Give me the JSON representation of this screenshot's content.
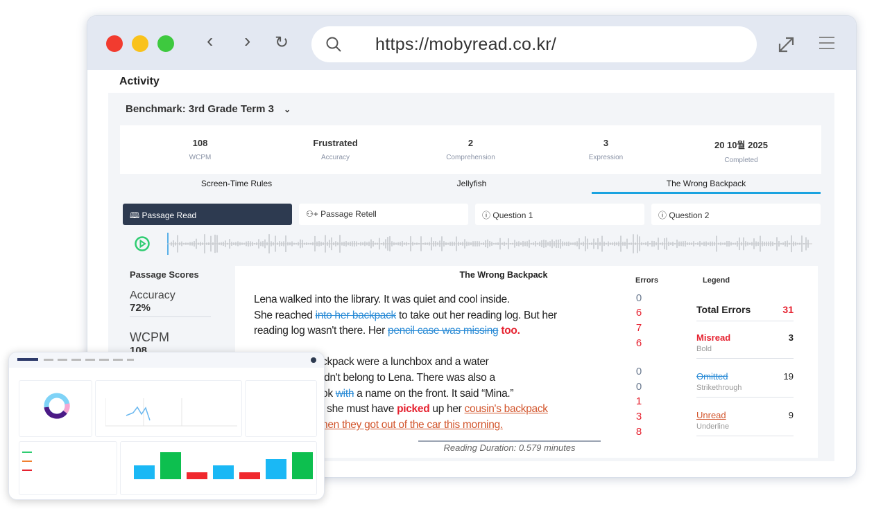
{
  "browser": {
    "url": "https://mobyread.co.kr/",
    "controls": {
      "close": "#f23b2f",
      "minimize": "#f9c21b",
      "maximize": "#3ec93f"
    }
  },
  "page": {
    "title": "Activity",
    "benchmark": "Benchmark: 3rd Grade Term 3"
  },
  "stats": [
    {
      "value": "108",
      "label": "WCPM"
    },
    {
      "value": "Frustrated",
      "label": "Accuracy"
    },
    {
      "value": "2",
      "label": "Comprehension"
    },
    {
      "value": "3",
      "label": "Expression"
    },
    {
      "value": "20 10월 2025",
      "label": "Completed"
    }
  ],
  "tabs": [
    {
      "label": "Screen-Time Rules"
    },
    {
      "label": "Jellyfish"
    },
    {
      "label": "The Wrong Backpack",
      "active": true
    }
  ],
  "subtabs": [
    {
      "label": "Passage Read",
      "icon": "book-icon",
      "active": true
    },
    {
      "label": "Passage Retell",
      "icon": "person-add-icon"
    },
    {
      "label": "Question 1",
      "icon": "question-icon"
    },
    {
      "label": "Question 2",
      "icon": "question-icon"
    }
  ],
  "scores": {
    "title": "Passage Scores",
    "items": [
      {
        "label": "Accuracy",
        "value": "72%"
      },
      {
        "label": "WCPM",
        "value": "108"
      }
    ]
  },
  "passage": {
    "title": "The Wrong Backpack",
    "para1": [
      [
        {
          "t": "Lena walked into the library. It was quiet and cool inside.",
          "s": ""
        }
      ],
      [
        {
          "t": "She reached ",
          "s": ""
        },
        {
          "t": "into her backpack",
          "s": "om"
        },
        {
          "t": " to take out her reading log. But her",
          "s": ""
        }
      ],
      [
        {
          "t": "reading log wasn't there. Her ",
          "s": ""
        },
        {
          "t": "pencil case was missing",
          "s": "om"
        },
        {
          "t": " too.",
          "s": "ms"
        }
      ]
    ],
    "para2": [
      [
        {
          "t": "ckpack were a lunchbox and a water",
          "s": ""
        }
      ],
      [
        {
          "t": "idn't belong to Lena. There was also a",
          "s": ""
        }
      ],
      [
        {
          "t": "ok ",
          "s": ""
        },
        {
          "t": "with",
          "s": "om"
        },
        {
          "t": " a name on the front. It said “Mina.”",
          "s": ""
        }
      ],
      [
        {
          "t": "l she must have ",
          "s": ""
        },
        {
          "t": "picked",
          "s": "ms"
        },
        {
          "t": " up her ",
          "s": ""
        },
        {
          "t": "cousin's backpack",
          "s": "ur"
        }
      ],
      [
        {
          "t": "hen they got out of the car this morning.",
          "s": "ur"
        }
      ]
    ],
    "duration": "Reading Duration: 0.579 minutes"
  },
  "errors": {
    "header": "Errors",
    "values": [
      "0",
      "6",
      "7",
      "6",
      "0",
      "0",
      "1",
      "3",
      "8"
    ]
  },
  "legend": {
    "header": "Legend",
    "total_label": "Total Errors",
    "total": "31",
    "items": [
      {
        "label": "Misread",
        "desc": "Bold",
        "count": "3",
        "color": "#e62230"
      },
      {
        "label": "Omitted",
        "desc": "Strikethrough",
        "count": "19",
        "color": "#2a8bd6"
      },
      {
        "label": "Unread",
        "desc": "Underline",
        "count": "9",
        "color": "#d2552c"
      }
    ]
  },
  "colors": {
    "accent": "#1aa3e0",
    "dark": "#2d3a50",
    "error": "#e62230",
    "play": "#2ecc71"
  }
}
